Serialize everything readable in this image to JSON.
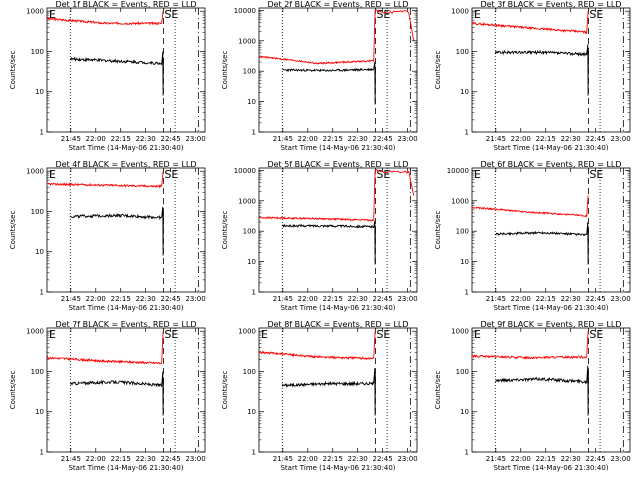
{
  "chart_data": [
    {
      "type": "line",
      "title": "Det 1f BLACK = Events, RED = LLD",
      "ylabel": "Counts/sec",
      "xlabel": "Start Time (14-May-06 21:30:40)",
      "x_ticks": [
        "21:45",
        "22:00",
        "22:15",
        "22:30",
        "22:45",
        "23:00"
      ],
      "y_ticks": [
        "1",
        "10",
        "100",
        "1000"
      ],
      "ylim": [
        1,
        1200
      ],
      "y_scale": "log",
      "x_range_minutes": [
        0,
        95
      ],
      "marker_left": "E",
      "marker_right": "SE",
      "vlines": [
        {
          "t": 14,
          "style": "dotted"
        },
        {
          "t": 70,
          "style": "dashed"
        },
        {
          "t": 77,
          "style": "dotted"
        },
        {
          "t": 91,
          "style": "dashdot"
        }
      ],
      "series": [
        {
          "color": "#ff0000",
          "t_start": 0,
          "t_end": 70,
          "start": 650,
          "mid": 500,
          "end": 500,
          "spike": 1000
        },
        {
          "color": "#000000",
          "t_start": 14,
          "t_end": 70,
          "start": 65,
          "mid": 58,
          "end": 50,
          "spike": 100
        }
      ]
    },
    {
      "type": "line",
      "title": "Det 2f BLACK = Events, RED = LLD",
      "ylabel": "Counts/sec",
      "xlabel": "Start Time (14-May-06 21:30:40)",
      "x_ticks": [
        "21:45",
        "22:00",
        "22:15",
        "22:30",
        "22:45",
        "23:00"
      ],
      "y_ticks": [
        "1",
        "10",
        "100",
        "1000",
        "10000"
      ],
      "ylim": [
        1,
        12000
      ],
      "y_scale": "log",
      "x_range_minutes": [
        0,
        95
      ],
      "marker_left": "",
      "marker_right": "SE",
      "vlines": [
        {
          "t": 14,
          "style": "dotted"
        },
        {
          "t": 70,
          "style": "dashed"
        },
        {
          "t": 77,
          "style": "dotted"
        },
        {
          "t": 91,
          "style": "dashdot"
        }
      ],
      "series": [
        {
          "color": "#ff0000",
          "t_start": 0,
          "t_end": 94,
          "start": 300,
          "mid": 180,
          "end": 220,
          "spike": 10000,
          "tail": 1000
        },
        {
          "color": "#000000",
          "t_start": 14,
          "t_end": 70,
          "start": 110,
          "mid": 105,
          "end": 115,
          "spike": 200
        }
      ]
    },
    {
      "type": "line",
      "title": "Det 3f BLACK = Events, RED = LLD",
      "ylabel": "Counts/sec",
      "xlabel": "Start Time (14-May-06 21:30:40)",
      "x_ticks": [
        "21:45",
        "22:00",
        "22:15",
        "22:30",
        "22:45",
        "23:00"
      ],
      "y_ticks": [
        "1",
        "10",
        "100",
        "1000"
      ],
      "ylim": [
        1,
        1200
      ],
      "y_scale": "log",
      "x_range_minutes": [
        0,
        95
      ],
      "marker_left": "E",
      "marker_right": "SE",
      "vlines": [
        {
          "t": 14,
          "style": "dotted"
        },
        {
          "t": 70,
          "style": "dashed"
        },
        {
          "t": 77,
          "style": "dotted"
        },
        {
          "t": 91,
          "style": "dashdot"
        }
      ],
      "series": [
        {
          "color": "#ff0000",
          "t_start": 0,
          "t_end": 70,
          "start": 500,
          "mid": 380,
          "end": 300,
          "spike": 1000
        },
        {
          "color": "#000000",
          "t_start": 14,
          "t_end": 70,
          "start": 95,
          "mid": 95,
          "end": 85,
          "spike": 150
        }
      ]
    },
    {
      "type": "line",
      "title": "Det 4f BLACK = Events, RED = LLD",
      "ylabel": "Counts/sec",
      "xlabel": "Start Time (14-May-06 21:30:40)",
      "x_ticks": [
        "21:45",
        "22:00",
        "22:15",
        "22:30",
        "22:45",
        "23:00"
      ],
      "y_ticks": [
        "1",
        "10",
        "100",
        "1000"
      ],
      "ylim": [
        1,
        1200
      ],
      "y_scale": "log",
      "x_range_minutes": [
        0,
        95
      ],
      "marker_left": "E",
      "marker_right": "SE",
      "vlines": [
        {
          "t": 14,
          "style": "dotted"
        },
        {
          "t": 70,
          "style": "dashed"
        },
        {
          "t": 77,
          "style": "dotted"
        },
        {
          "t": 91,
          "style": "dashdot"
        }
      ],
      "series": [
        {
          "color": "#ff0000",
          "t_start": 0,
          "t_end": 70,
          "start": 480,
          "mid": 450,
          "end": 420,
          "spike": 1000
        },
        {
          "color": "#000000",
          "t_start": 14,
          "t_end": 70,
          "start": 75,
          "mid": 80,
          "end": 70,
          "spike": 130
        }
      ]
    },
    {
      "type": "line",
      "title": "Det 5f BLACK = Events, RED = LLD",
      "ylabel": "Counts/sec",
      "xlabel": "Start Time (14-May-06 21:30:40)",
      "x_ticks": [
        "21:45",
        "22:00",
        "22:15",
        "22:30",
        "22:45",
        "23:00"
      ],
      "y_ticks": [
        "1",
        "10",
        "100",
        "1000",
        "10000"
      ],
      "ylim": [
        1,
        12000
      ],
      "y_scale": "log",
      "x_range_minutes": [
        0,
        95
      ],
      "marker_left": "",
      "marker_right": "SE",
      "vlines": [
        {
          "t": 14,
          "style": "dotted"
        },
        {
          "t": 70,
          "style": "dashed"
        },
        {
          "t": 77,
          "style": "dotted"
        },
        {
          "t": 91,
          "style": "dashdot"
        }
      ],
      "series": [
        {
          "color": "#ff0000",
          "t_start": 0,
          "t_end": 94,
          "start": 280,
          "mid": 260,
          "end": 230,
          "spike": 10000,
          "tail": 1500
        },
        {
          "color": "#000000",
          "t_start": 14,
          "t_end": 70,
          "start": 150,
          "mid": 150,
          "end": 140,
          "spike": 220
        }
      ]
    },
    {
      "type": "line",
      "title": "Det 6f BLACK = Events, RED = LLD",
      "ylabel": "Counts/sec",
      "xlabel": "Start Time (14-May-06 21:30:40)",
      "x_ticks": [
        "21:45",
        "22:00",
        "22:15",
        "22:30",
        "22:45",
        "23:00"
      ],
      "y_ticks": [
        "1",
        "10",
        "100",
        "1000",
        "10000"
      ],
      "ylim": [
        1,
        12000
      ],
      "y_scale": "log",
      "x_range_minutes": [
        0,
        95
      ],
      "marker_left": "E",
      "marker_right": "SE",
      "vlines": [
        {
          "t": 14,
          "style": "dotted"
        },
        {
          "t": 70,
          "style": "dashed"
        },
        {
          "t": 77,
          "style": "dotted"
        },
        {
          "t": 91,
          "style": "dashdot"
        }
      ],
      "series": [
        {
          "color": "#ff0000",
          "t_start": 0,
          "t_end": 70,
          "start": 600,
          "mid": 420,
          "end": 320,
          "spike": 1500
        },
        {
          "color": "#000000",
          "t_start": 14,
          "t_end": 70,
          "start": 80,
          "mid": 90,
          "end": 75,
          "spike": 200
        }
      ]
    },
    {
      "type": "line",
      "title": "Det 7f BLACK = Events, RED = LLD",
      "ylabel": "Counts/sec",
      "xlabel": "Start Time (14-May-06 21:30:40)",
      "x_ticks": [
        "21:45",
        "22:00",
        "22:15",
        "22:30",
        "22:45",
        "23:00"
      ],
      "y_ticks": [
        "1",
        "10",
        "100",
        "1000"
      ],
      "ylim": [
        1,
        1200
      ],
      "y_scale": "log",
      "x_range_minutes": [
        0,
        95
      ],
      "marker_left": "E",
      "marker_right": "SE",
      "vlines": [
        {
          "t": 14,
          "style": "dotted"
        },
        {
          "t": 70,
          "style": "dashed"
        },
        {
          "t": 77,
          "style": "dotted"
        },
        {
          "t": 91,
          "style": "dashdot"
        }
      ],
      "series": [
        {
          "color": "#ff0000",
          "t_start": 0,
          "t_end": 70,
          "start": 220,
          "mid": 180,
          "end": 160,
          "spike": 1000
        },
        {
          "color": "#000000",
          "t_start": 14,
          "t_end": 70,
          "start": 50,
          "mid": 55,
          "end": 45,
          "spike": 100
        }
      ]
    },
    {
      "type": "line",
      "title": "Det 8f BLACK = Events, RED = LLD",
      "ylabel": "Counts/sec",
      "xlabel": "Start Time (14-May-06 21:30:40)",
      "x_ticks": [
        "21:45",
        "22:00",
        "22:15",
        "22:30",
        "22:45",
        "23:00"
      ],
      "y_ticks": [
        "1",
        "10",
        "100",
        "1000"
      ],
      "ylim": [
        1,
        1200
      ],
      "y_scale": "log",
      "x_range_minutes": [
        0,
        95
      ],
      "marker_left": "E",
      "marker_right": "SE",
      "vlines": [
        {
          "t": 14,
          "style": "dotted"
        },
        {
          "t": 70,
          "style": "dashed"
        },
        {
          "t": 77,
          "style": "dotted"
        },
        {
          "t": 91,
          "style": "dashdot"
        }
      ],
      "series": [
        {
          "color": "#ff0000",
          "t_start": 0,
          "t_end": 70,
          "start": 300,
          "mid": 230,
          "end": 210,
          "spike": 1000
        },
        {
          "color": "#000000",
          "t_start": 14,
          "t_end": 70,
          "start": 45,
          "mid": 50,
          "end": 50,
          "spike": 120
        }
      ]
    },
    {
      "type": "line",
      "title": "Det 9f BLACK = Events, RED = LLD",
      "ylabel": "Counts/sec",
      "xlabel": "Start Time (14-May-06 21:30:40)",
      "x_ticks": [
        "21:45",
        "22:00",
        "22:15",
        "22:30",
        "22:45",
        "23:00"
      ],
      "y_ticks": [
        "1",
        "10",
        "100",
        "1000"
      ],
      "ylim": [
        1,
        1200
      ],
      "y_scale": "log",
      "x_range_minutes": [
        0,
        95
      ],
      "marker_left": "E",
      "marker_right": "SE",
      "vlines": [
        {
          "t": 14,
          "style": "dotted"
        },
        {
          "t": 70,
          "style": "dashed"
        },
        {
          "t": 77,
          "style": "dotted"
        },
        {
          "t": 91,
          "style": "dashdot"
        }
      ],
      "series": [
        {
          "color": "#ff0000",
          "t_start": 0,
          "t_end": 70,
          "start": 240,
          "mid": 220,
          "end": 230,
          "spike": 1000
        },
        {
          "color": "#000000",
          "t_start": 14,
          "t_end": 70,
          "start": 60,
          "mid": 65,
          "end": 55,
          "spike": 140
        }
      ]
    }
  ]
}
